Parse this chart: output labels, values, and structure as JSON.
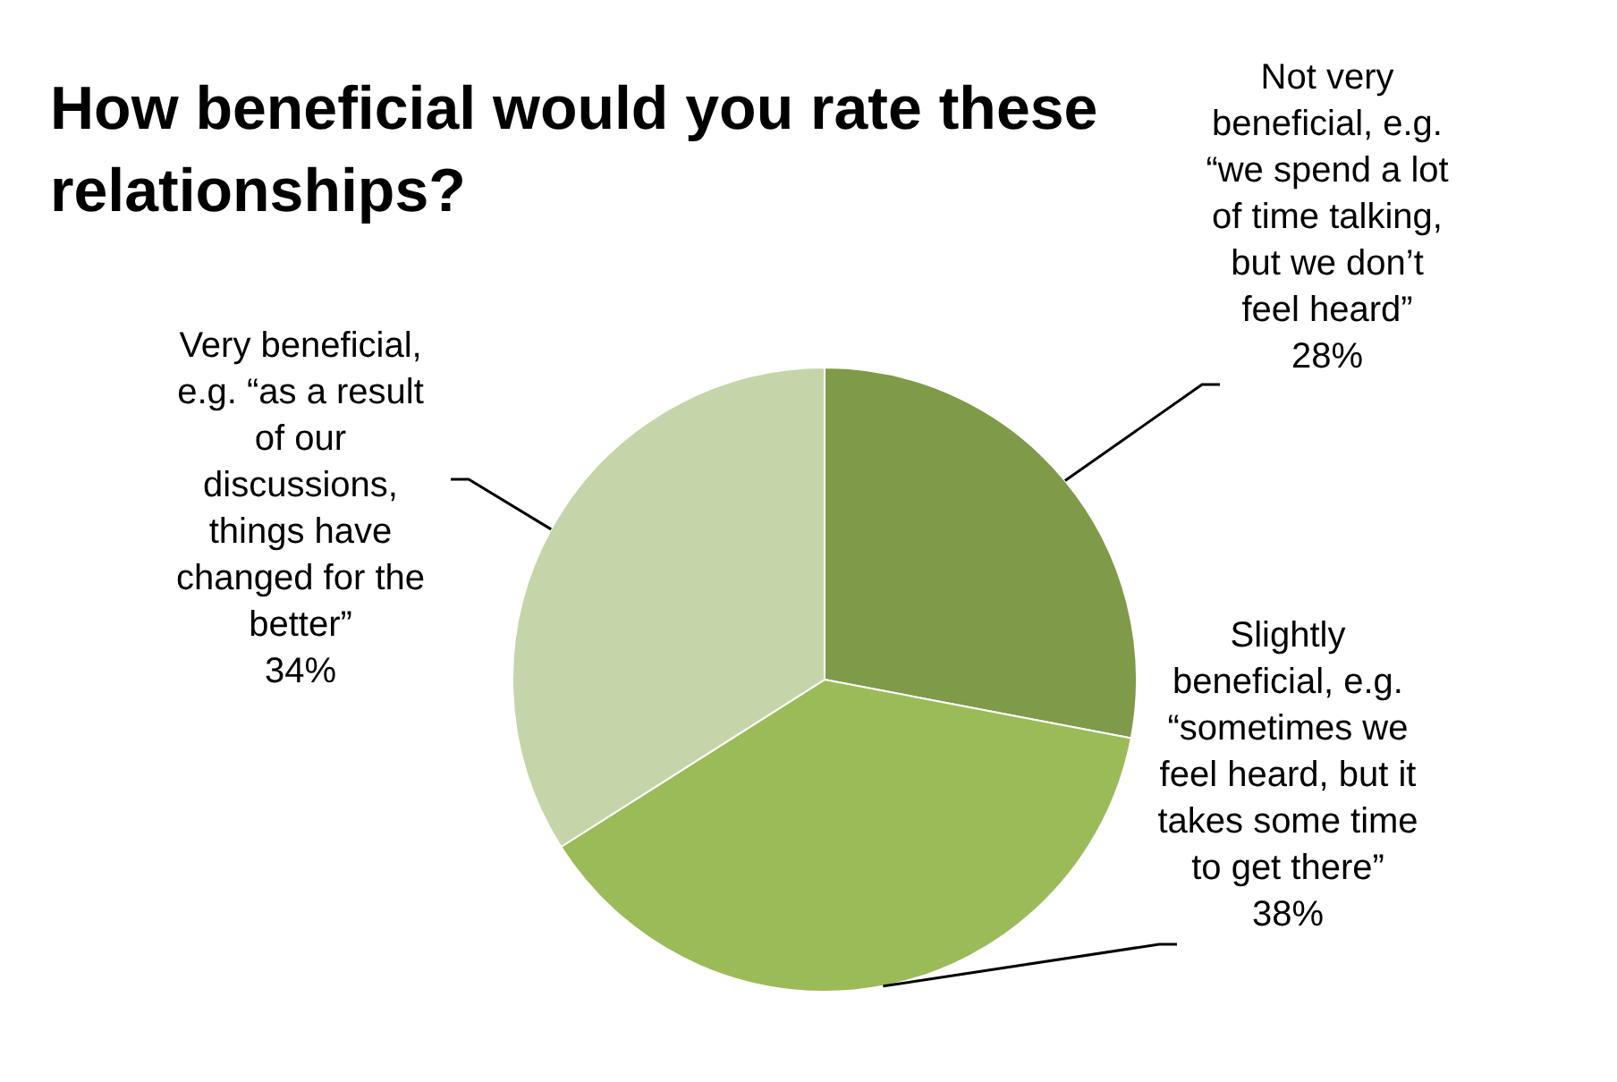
{
  "chart_data": {
    "type": "pie",
    "title": "How beneficial would you rate these relationships?",
    "categories": [
      "Not very beneficial, e.g. “we spend a lot of time talking, but we don’t feel heard”",
      "Slightly beneficial, e.g. “sometimes we feel heard, but it takes some time to get there”",
      "Very beneficial, e.g. “as a result of our discussions, things have changed for the better”"
    ],
    "values": [
      28,
      38,
      34
    ],
    "colors": [
      "#7f9a48",
      "#9bbb59",
      "#c4d6a9"
    ],
    "value_labels": [
      "28%",
      "38%",
      "34%"
    ],
    "legend": false
  }
}
